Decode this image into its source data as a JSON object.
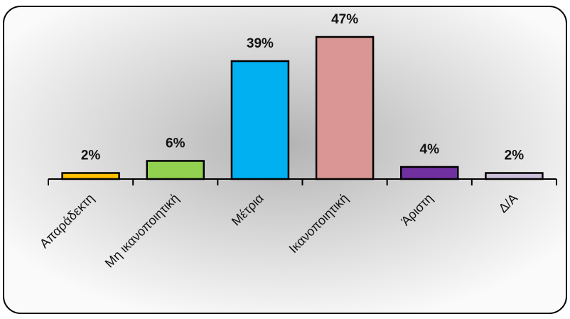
{
  "chart_data": {
    "type": "bar",
    "categories": [
      "Απαράδεκτη",
      "Μη ικανοποιητική",
      "Μέτρια",
      "Ικανοποιητική",
      "Άριστη",
      "Δ/Α"
    ],
    "values": [
      2,
      6,
      39,
      47,
      4,
      2
    ],
    "value_labels": [
      "2%",
      "6%",
      "39%",
      "47%",
      "4%",
      "2%"
    ],
    "value_unit": "%",
    "ylim": [
      0,
      50
    ],
    "colors": [
      "#FFC000",
      "#92D050",
      "#00B0F0",
      "#D99694",
      "#7030A0",
      "#CCC0DA"
    ],
    "grid": false,
    "legend": "none",
    "title": "",
    "xlabel": "",
    "ylabel": ""
  }
}
